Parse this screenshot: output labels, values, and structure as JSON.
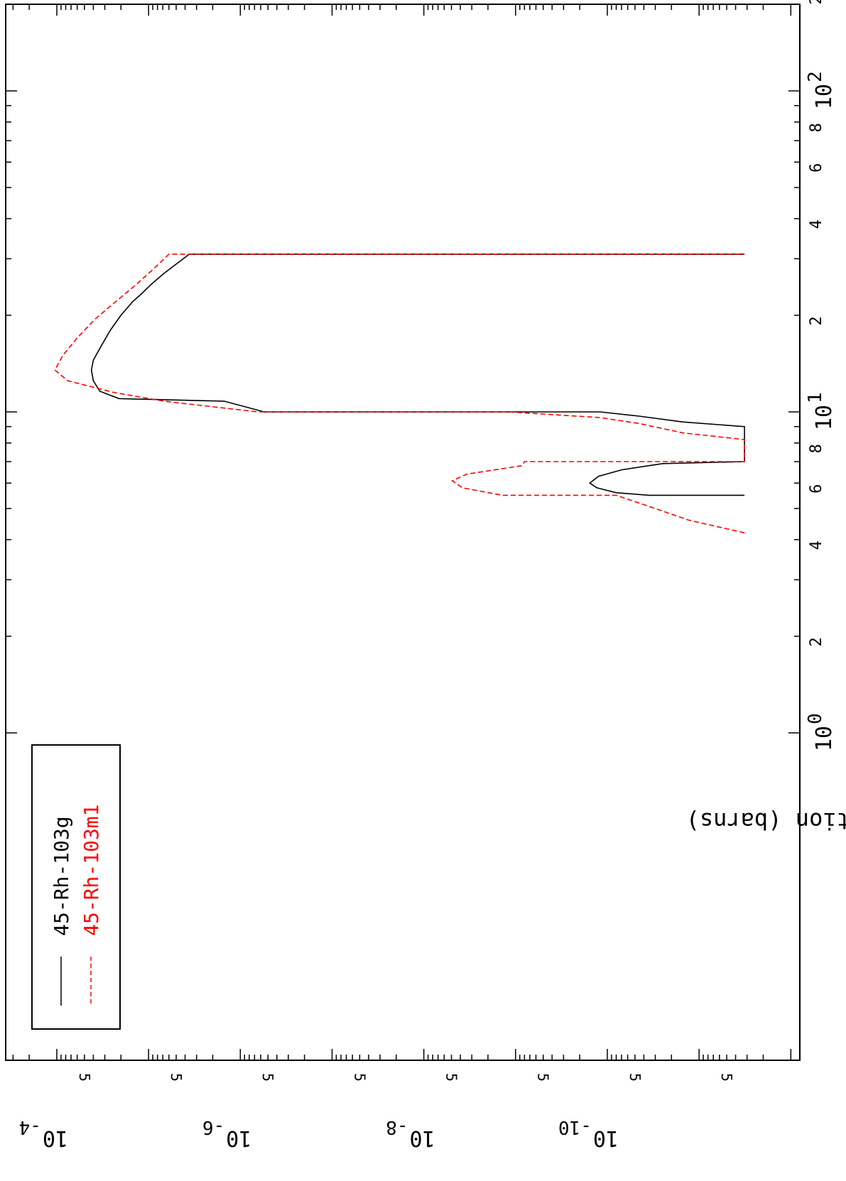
{
  "chart_data": {
    "type": "line",
    "orientation": "rotated 90 degrees clockwise (x axis runs top-to-bottom, y axis runs right-to-left)",
    "title": "",
    "xlabel": "",
    "ylabel": "Cross Section (barns)",
    "x_scale": "log",
    "y_scale": "log",
    "xlim": [
      1.1,
      230
    ],
    "ylim": [
      3.2e-12,
      0.000115
    ],
    "x_ticks": [
      {
        "value": 2,
        "label": "2"
      },
      {
        "value": 4,
        "label": "4"
      },
      {
        "value": 6,
        "label": "6"
      },
      {
        "value": 8,
        "label": "8"
      },
      {
        "value": 10,
        "label": "10",
        "sup": "0"
      },
      {
        "value": 20,
        "label": "2"
      },
      {
        "value": 40,
        "label": "4"
      },
      {
        "value": 60,
        "label": "6"
      },
      {
        "value": 80,
        "label": "8"
      },
      {
        "value": 100,
        "label": "10",
        "sup": "1"
      },
      {
        "value": 200,
        "label": "2"
      }
    ],
    "x_ticks_note": "x-axis tick labels as printed; values above assume plotted tick positions with decade labels shown at each power of ten",
    "x_tick_labels_printed": [
      {
        "pos": 1.9,
        "label": "2"
      },
      {
        "pos": 3.8,
        "label": "4"
      },
      {
        "pos": 5.9,
        "label": "6"
      },
      {
        "pos": 7.9,
        "label": "8"
      },
      {
        "pos": 9.9,
        "label": "10",
        "sup": "0"
      },
      {
        "pos": 19.0,
        "label": "2"
      },
      {
        "pos": 38.0,
        "label": "4"
      },
      {
        "pos": 58.0,
        "label": "6"
      },
      {
        "pos": 78.0,
        "label": "8"
      },
      {
        "pos": 99.0,
        "label": "10",
        "sup": "1"
      },
      {
        "pos": 198.0,
        "label": "2"
      }
    ],
    "decade_labels": [
      {
        "value": 1,
        "label": "10",
        "sup": "0"
      },
      {
        "value": 10,
        "label": "10",
        "sup": "1"
      },
      {
        "value": 100,
        "label": "10",
        "sup": "2"
      }
    ],
    "minor_labels": [
      {
        "value": 2,
        "label": "2"
      },
      {
        "value": 4,
        "label": "4"
      },
      {
        "value": 6,
        "label": "6"
      },
      {
        "value": 8,
        "label": "8"
      },
      {
        "value": 20,
        "label": "2"
      },
      {
        "value": 40,
        "label": "4"
      },
      {
        "value": 60,
        "label": "6"
      },
      {
        "value": 80,
        "label": "8"
      },
      {
        "value": 200,
        "label": "2"
      }
    ],
    "y_decade_labels": [
      {
        "value": 0.0001,
        "label": "10",
        "sup": "-4"
      },
      {
        "value": 1e-06,
        "label": "10",
        "sup": "-6"
      },
      {
        "value": 1e-08,
        "label": "10",
        "sup": "-8"
      },
      {
        "value": 1e-10,
        "label": "10",
        "sup": "-10"
      }
    ],
    "y_five_labels": [
      {
        "value": 5e-05,
        "label": "5"
      },
      {
        "value": 5e-06,
        "label": "5"
      },
      {
        "value": 5e-07,
        "label": "5"
      },
      {
        "value": 5e-08,
        "label": "5"
      },
      {
        "value": 5e-09,
        "label": "5"
      },
      {
        "value": 5e-10,
        "label": "5"
      },
      {
        "value": 5e-11,
        "label": "5"
      },
      {
        "value": 5e-12,
        "label": "5"
      }
    ],
    "grid": false,
    "legend": {
      "position": "bottom-left (top-left when viewed upright)",
      "entries": [
        "45-Rh-103g",
        "45-Rh-103m1"
      ]
    },
    "series": [
      {
        "name": "45-Rh-103g",
        "color": "#000000",
        "dash": "solid",
        "points": [
          [
            5.5,
            3.2e-12
          ],
          [
            5.5,
            3.5e-11
          ],
          [
            5.6,
            8e-11
          ],
          [
            5.8,
            1.3e-10
          ],
          [
            6.0,
            1.55e-10
          ],
          [
            6.3,
            1.25e-10
          ],
          [
            6.6,
            7e-11
          ],
          [
            6.9,
            2.5e-11
          ],
          [
            7.0,
            3.2e-12
          ],
          [
            9.0,
            3.2e-12
          ],
          [
            9.3,
            1.5e-11
          ],
          [
            9.7,
            4.5e-11
          ],
          [
            10.0,
            1.2e-10
          ],
          [
            10.0,
            5.5e-07
          ],
          [
            10.8,
            1.5e-06
          ],
          [
            11.0,
            2.1e-05
          ],
          [
            11.6,
            3.4e-05
          ],
          [
            12.5,
            4e-05
          ],
          [
            13.5,
            4.2e-05
          ],
          [
            14.5,
            4e-05
          ],
          [
            16.0,
            3.3e-05
          ],
          [
            18.0,
            2.6e-05
          ],
          [
            20.0,
            2e-05
          ],
          [
            22.0,
            1.5e-05
          ],
          [
            23.3,
            1.2e-05
          ],
          [
            25.0,
            9.3e-06
          ],
          [
            27.0,
            6.8e-06
          ],
          [
            29.0,
            4.9e-06
          ],
          [
            31.0,
            3.6e-06
          ],
          [
            31.0,
            3.2e-12
          ]
        ]
      },
      {
        "name": "45-Rh-103m1",
        "color": "#ff0000",
        "dash": "dashed",
        "points": [
          [
            4.2,
            3.2e-12
          ],
          [
            4.6,
            1.3e-11
          ],
          [
            5.0,
            3e-11
          ],
          [
            5.5,
            8e-11
          ],
          [
            5.5,
            1.4e-09
          ],
          [
            5.8,
            3.8e-09
          ],
          [
            6.1,
            4.9e-09
          ],
          [
            6.4,
            3.4e-09
          ],
          [
            6.8,
            8.5e-10
          ],
          [
            7.0,
            8e-10
          ],
          [
            7.0,
            3.2e-12
          ],
          [
            8.2,
            3.2e-12
          ],
          [
            8.6,
            1.5e-11
          ],
          [
            9.2,
            4.5e-11
          ],
          [
            9.6,
            1.2e-10
          ],
          [
            10.0,
            1.2e-09
          ],
          [
            10.0,
            6.5e-07
          ],
          [
            10.8,
            6.8e-06
          ],
          [
            11.5,
            2.4e-05
          ],
          [
            12.5,
            7.6e-05
          ],
          [
            13.5,
            0.000105
          ],
          [
            15.0,
            8.6e-05
          ],
          [
            17.0,
            6e-05
          ],
          [
            19.5,
            3.8e-05
          ],
          [
            22.0,
            2.3e-05
          ],
          [
            25.0,
            1.35e-05
          ],
          [
            28.0,
            8.7e-06
          ],
          [
            31.0,
            6e-06
          ],
          [
            31.0,
            3.2e-12
          ]
        ]
      }
    ]
  }
}
